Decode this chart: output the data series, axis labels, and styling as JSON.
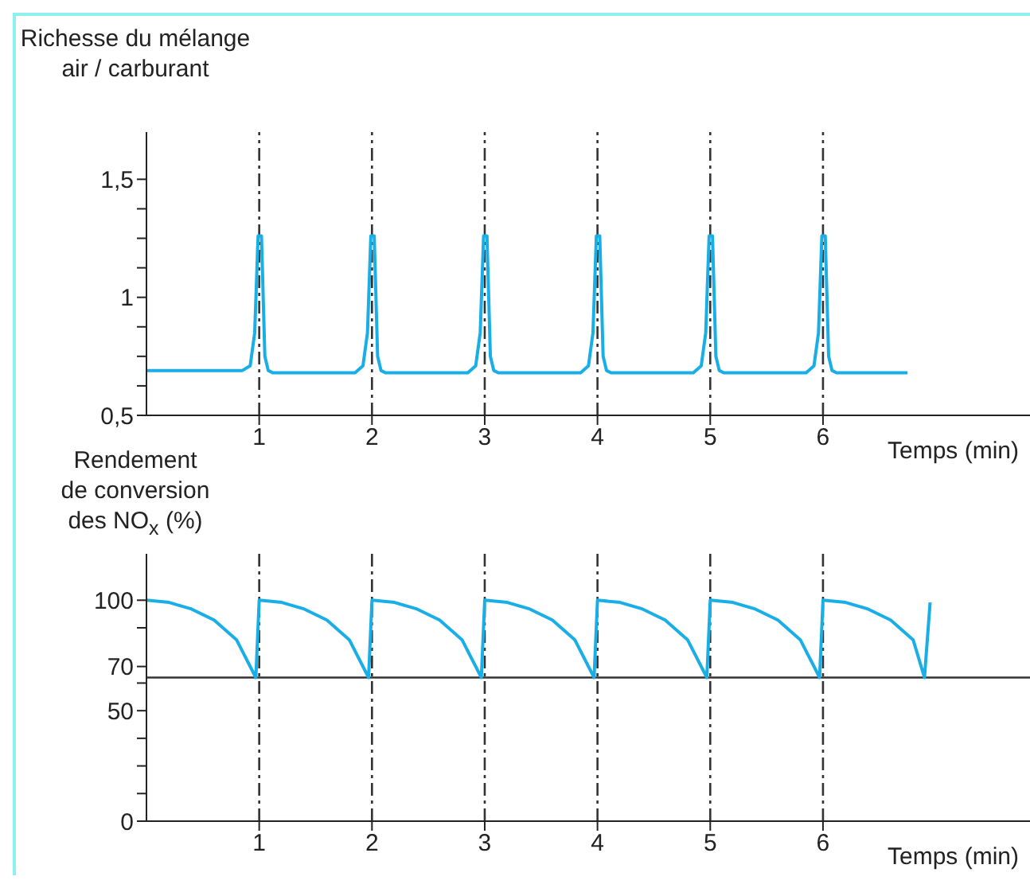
{
  "chart_data": [
    {
      "type": "line",
      "ylabel": "Richesse du mélange\nair / carburant",
      "xlabel": "Temps (min)",
      "xlim": [
        0,
        7.85
      ],
      "xticks": [
        1,
        2,
        3,
        4,
        5,
        6
      ],
      "ylim": [
        0.5,
        1.7
      ],
      "yticks": [
        {
          "value": 0.5,
          "label": "0,5"
        },
        {
          "value": 0.625,
          "label": null
        },
        {
          "value": 0.75,
          "label": null
        },
        {
          "value": 0.875,
          "label": null
        },
        1,
        {
          "value": 1.125,
          "label": null
        },
        {
          "value": 1.25,
          "label": null
        },
        {
          "value": 1.375,
          "label": null
        },
        {
          "value": 1.5,
          "label": "1,5"
        }
      ],
      "grid": false,
      "legend": false,
      "marker": "none",
      "line_style": "solid",
      "series": [
        {
          "color": "#1aaee6",
          "x": [
            0,
            0.85,
            0.92,
            0.96,
            0.99,
            1.02,
            1.05,
            1.08,
            1.12,
            1.85,
            1.92,
            1.96,
            1.99,
            2.02,
            2.05,
            2.08,
            2.12,
            2.85,
            2.92,
            2.96,
            2.99,
            3.02,
            3.05,
            3.08,
            3.12,
            3.85,
            3.92,
            3.96,
            3.99,
            4.02,
            4.05,
            4.08,
            4.12,
            4.85,
            4.92,
            4.96,
            4.99,
            5.02,
            5.05,
            5.08,
            5.12,
            5.85,
            5.92,
            5.96,
            5.99,
            6.02,
            6.05,
            6.08,
            6.12,
            6.75
          ],
          "values": [
            0.69,
            0.69,
            0.71,
            0.85,
            1.26,
            1.26,
            0.75,
            0.69,
            0.68,
            0.68,
            0.71,
            0.85,
            1.26,
            1.26,
            0.75,
            0.69,
            0.68,
            0.68,
            0.71,
            0.85,
            1.26,
            1.26,
            0.75,
            0.69,
            0.68,
            0.68,
            0.71,
            0.85,
            1.26,
            1.26,
            0.75,
            0.69,
            0.68,
            0.68,
            0.71,
            0.85,
            1.26,
            1.26,
            0.75,
            0.69,
            0.68,
            0.68,
            0.71,
            0.85,
            1.26,
            1.26,
            0.75,
            0.69,
            0.68,
            0.68
          ]
        }
      ],
      "ref_lines": [
        {
          "axis": "x",
          "value": 1,
          "line_style": "dashdot",
          "color": "#333333"
        },
        {
          "axis": "x",
          "value": 2,
          "line_style": "dashdot",
          "color": "#333333"
        },
        {
          "axis": "x",
          "value": 3,
          "line_style": "dashdot",
          "color": "#333333"
        },
        {
          "axis": "x",
          "value": 4,
          "line_style": "dashdot",
          "color": "#333333"
        },
        {
          "axis": "x",
          "value": 5,
          "line_style": "dashdot",
          "color": "#333333"
        },
        {
          "axis": "x",
          "value": 6,
          "line_style": "dashdot",
          "color": "#333333"
        }
      ]
    },
    {
      "type": "line",
      "ylabel": "Rendement\nde conversion\ndes NO$_{x}$ (%)",
      "xlabel": "Temps (min)",
      "xlim": [
        0,
        7.85
      ],
      "xticks": [
        1,
        2,
        3,
        4,
        5,
        6
      ],
      "ylim": [
        0,
        121
      ],
      "yticks": [
        0,
        {
          "value": 12.5,
          "label": null
        },
        {
          "value": 25,
          "label": null
        },
        {
          "value": 37.5,
          "label": null
        },
        50,
        {
          "value": 62.5,
          "label": null
        },
        70,
        {
          "value": 87.5,
          "label": null
        },
        100
      ],
      "grid": false,
      "legend": false,
      "marker": "none",
      "line_style": "solid",
      "series": [
        {
          "color": "#1aaee6",
          "x": [
            0,
            0.2,
            0.4,
            0.6,
            0.8,
            0.97,
            1.0,
            1.2,
            1.4,
            1.6,
            1.8,
            1.97,
            2.0,
            2.2,
            2.4,
            2.6,
            2.8,
            2.97,
            3.0,
            3.2,
            3.4,
            3.6,
            3.8,
            3.97,
            4.0,
            4.2,
            4.4,
            4.6,
            4.8,
            4.97,
            5.0,
            5.2,
            5.4,
            5.6,
            5.8,
            5.97,
            6.0,
            6.2,
            6.4,
            6.6,
            6.8,
            6.9,
            6.95
          ],
          "values": [
            100,
            99,
            96,
            91,
            82,
            65,
            100,
            99,
            96,
            91,
            82,
            65,
            100,
            99,
            96,
            91,
            82,
            65,
            100,
            99,
            96,
            91,
            82,
            65,
            100,
            99,
            96,
            91,
            82,
            65,
            100,
            99,
            96,
            91,
            82,
            65,
            100,
            99,
            96,
            91,
            82,
            65,
            99
          ]
        }
      ],
      "ref_lines": [
        {
          "axis": "y",
          "value": 65,
          "line_style": "solid",
          "color": "#333333"
        },
        {
          "axis": "x",
          "value": 1,
          "line_style": "dashdot",
          "color": "#333333"
        },
        {
          "axis": "x",
          "value": 2,
          "line_style": "dashdot",
          "color": "#333333"
        },
        {
          "axis": "x",
          "value": 3,
          "line_style": "dashdot",
          "color": "#333333"
        },
        {
          "axis": "x",
          "value": 4,
          "line_style": "dashdot",
          "color": "#333333"
        },
        {
          "axis": "x",
          "value": 5,
          "line_style": "dashdot",
          "color": "#333333"
        },
        {
          "axis": "x",
          "value": 6,
          "line_style": "dashdot",
          "color": "#333333"
        }
      ]
    }
  ]
}
